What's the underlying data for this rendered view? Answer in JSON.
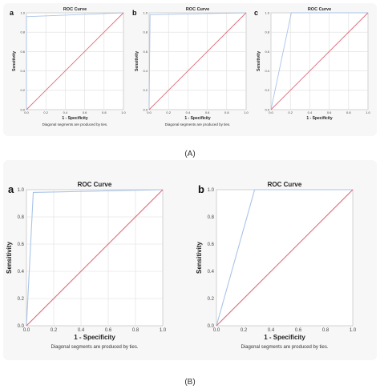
{
  "captions": {
    "a": "(A)",
    "b": "(B)"
  },
  "chart_data": [
    {
      "panel": "A",
      "letter": "a",
      "type": "line",
      "title": "ROC Curve",
      "xlabel": "1 - Specificity",
      "ylabel": "Sensitivity",
      "note": "Diagonal segments are produced by ties.",
      "xlim": [
        0,
        1
      ],
      "ylim": [
        0,
        1
      ],
      "grid": true,
      "ticks": [
        "0.0",
        "0.2",
        "0.4",
        "0.6",
        "0.8",
        "1.0"
      ],
      "series": [
        {
          "color": "#a9c4e8",
          "x": [
            0,
            0.0,
            1.0
          ],
          "y": [
            0,
            0.96,
            1.0
          ]
        },
        {
          "color": "#e06a78",
          "x": [
            0,
            1
          ],
          "y": [
            0,
            1
          ]
        }
      ]
    },
    {
      "panel": "A",
      "letter": "b",
      "type": "line",
      "title": "ROC Curve",
      "xlabel": "1 - Specificity",
      "ylabel": "Sensitivity",
      "note": "Diagonal segments are produced by ties.",
      "xlim": [
        0,
        1
      ],
      "ylim": [
        0,
        1
      ],
      "grid": true,
      "ticks": [
        "0.0",
        "0.2",
        "0.4",
        "0.6",
        "0.8",
        "1.0"
      ],
      "series": [
        {
          "color": "#a9c4e8",
          "x": [
            0,
            0.01,
            1.0
          ],
          "y": [
            0,
            0.98,
            1.0
          ]
        },
        {
          "color": "#e06a78",
          "x": [
            0,
            1
          ],
          "y": [
            0,
            1
          ]
        }
      ]
    },
    {
      "panel": "A",
      "letter": "c",
      "type": "line",
      "title": "ROC Curve",
      "xlabel": "1 - Specificity",
      "ylabel": "Sensitivity",
      "note": "",
      "xlim": [
        0,
        1
      ],
      "ylim": [
        0,
        1
      ],
      "grid": true,
      "ticks": [
        "0.0",
        "0.2",
        "0.4",
        "0.6",
        "0.8",
        "1.0"
      ],
      "series": [
        {
          "color": "#a9c4e8",
          "x": [
            0,
            0.21,
            1.0
          ],
          "y": [
            0,
            1.0,
            1.0
          ]
        },
        {
          "color": "#e06a78",
          "x": [
            0,
            1
          ],
          "y": [
            0,
            1
          ]
        }
      ]
    },
    {
      "panel": "B",
      "letter": "a",
      "type": "line",
      "title": "ROC Curve",
      "xlabel": "1 - Specificity",
      "ylabel": "Sensitivity",
      "note": "Diagonal segments are produced by ties.",
      "xlim": [
        0,
        1
      ],
      "ylim": [
        0,
        1
      ],
      "grid": true,
      "ticks": [
        "0.0",
        "0.2",
        "0.4",
        "0.6",
        "0.8",
        "1.0"
      ],
      "series": [
        {
          "color": "#a9c4e8",
          "x": [
            0,
            0.05,
            1.0
          ],
          "y": [
            0,
            0.98,
            1.0
          ]
        },
        {
          "color": "#e06a78",
          "x": [
            0,
            1
          ],
          "y": [
            0,
            1
          ]
        }
      ]
    },
    {
      "panel": "B",
      "letter": "b",
      "type": "line",
      "title": "ROC Curve",
      "xlabel": "1 - Specificity",
      "ylabel": "Sensitivity",
      "note": "Diagonal segments are produced by ties.",
      "xlim": [
        0,
        1
      ],
      "ylim": [
        0,
        1
      ],
      "grid": false,
      "ticks": [
        "0.0",
        "0.2",
        "0.4",
        "0.6",
        "0.8",
        "1.0"
      ],
      "series": [
        {
          "color": "#a9c4e8",
          "x": [
            0,
            0.28,
            1.0
          ],
          "y": [
            0,
            1.0,
            1.0
          ]
        },
        {
          "color": "#e06a78",
          "x": [
            0,
            1
          ],
          "y": [
            0,
            1
          ]
        }
      ]
    }
  ]
}
